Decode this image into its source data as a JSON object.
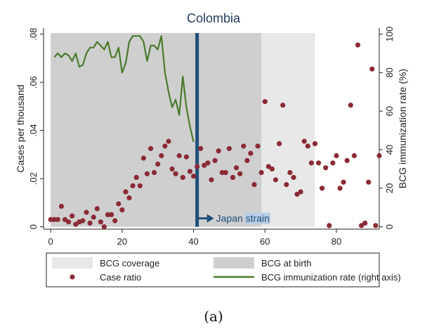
{
  "caption": "(a)",
  "chart_data": {
    "type": "scatter",
    "title": "Colombia",
    "xlabel": "",
    "ylabel": "Cases per thousand",
    "y2label": "BCG immunization rate (%)",
    "xlim": [
      -2,
      92
    ],
    "ylim": [
      -0.001,
      0.0825
    ],
    "y2lim": [
      -1.25,
      103.1
    ],
    "xticks": [
      "0",
      "20",
      "40",
      "60",
      "80"
    ],
    "yticks": [
      "0",
      ".02",
      ".04",
      ".06",
      ".08"
    ],
    "y2ticks": [
      "0",
      "20",
      "40",
      "60",
      "80",
      "100"
    ],
    "shaded_regions": [
      {
        "name": "BCG coverage",
        "x": [
          0,
          74
        ],
        "color": "#e8e8e8"
      },
      {
        "name": "BCG at birth",
        "x": [
          0,
          59
        ],
        "color": "#cfcfcf"
      }
    ],
    "annotation": {
      "x": 41,
      "label_prefix": "Japan",
      "label_highlight": "strain",
      "arrow_y": 0.0035
    },
    "legend": {
      "placement": "bottom",
      "entries": [
        {
          "label": "BCG coverage",
          "kind": "box",
          "color": "#e8e8e8"
        },
        {
          "label": "BCG at birth",
          "kind": "box",
          "color": "#cfcfcf"
        },
        {
          "label": "Case ratio",
          "kind": "marker",
          "color": "#8b2a35"
        },
        {
          "label": "BCG immunization rate (right axis)",
          "kind": "line",
          "color": "#4a7a2c"
        }
      ]
    },
    "series": [
      {
        "name": "Case ratio",
        "axis": "left",
        "color": "#8b2a35",
        "points": [
          [
            0,
            0.003
          ],
          [
            1,
            0.003
          ],
          [
            2,
            0.003
          ],
          [
            3,
            0.0085
          ],
          [
            4,
            0.003
          ],
          [
            5,
            0.002
          ],
          [
            6,
            0.0045
          ],
          [
            7,
            0.001
          ],
          [
            8,
            0.002
          ],
          [
            9,
            0.0025
          ],
          [
            10,
            0.006
          ],
          [
            11,
            0.0015
          ],
          [
            12,
            0.004
          ],
          [
            13,
            0.0075
          ],
          [
            14,
            0.002
          ],
          [
            15,
            0.0
          ],
          [
            16,
            0.005
          ],
          [
            17,
            0.005
          ],
          [
            18,
            0.0025
          ],
          [
            19,
            0.0095
          ],
          [
            20,
            0.007
          ],
          [
            21,
            0.0145
          ],
          [
            22,
            0.012
          ],
          [
            23,
            0.017
          ],
          [
            24,
            0.0205
          ],
          [
            25,
            0.017
          ],
          [
            26,
            0.0285
          ],
          [
            27,
            0.022
          ],
          [
            28,
            0.0325
          ],
          [
            29,
            0.0225
          ],
          [
            30,
            0.026
          ],
          [
            31,
            0.0295
          ],
          [
            32,
            0.0335
          ],
          [
            33,
            0.0355
          ],
          [
            34,
            0.024
          ],
          [
            35,
            0.022
          ],
          [
            36,
            0.0295
          ],
          [
            37,
            0.0205
          ],
          [
            38,
            0.029
          ],
          [
            39,
            0.023
          ],
          [
            40,
            0.021
          ],
          [
            41,
            0.025
          ],
          [
            42,
            0.0325
          ],
          [
            43,
            0.0255
          ],
          [
            44,
            0.0265
          ],
          [
            45,
            0.0195
          ],
          [
            46,
            0.0275
          ],
          [
            47,
            0.0315
          ],
          [
            48,
            0.0225
          ],
          [
            49,
            0.0225
          ],
          [
            50,
            0.0325
          ],
          [
            51,
            0.0205
          ],
          [
            52,
            0.0245
          ],
          [
            53,
            0.022
          ],
          [
            54,
            0.0335
          ],
          [
            55,
            0.0275
          ],
          [
            56,
            0.0305
          ],
          [
            57,
            0.0175
          ],
          [
            58,
            0.0335
          ],
          [
            59,
            0.0225
          ],
          [
            60,
            0.052
          ],
          [
            61,
            0.025
          ],
          [
            62,
            0.024
          ],
          [
            63,
            0.0195
          ],
          [
            64,
            0.0345
          ],
          [
            65,
            0.0505
          ],
          [
            66,
            0.0175
          ],
          [
            67,
            0.0225
          ],
          [
            68,
            0.0205
          ],
          [
            69,
            0.0135
          ],
          [
            70,
            0.0145
          ],
          [
            71,
            0.0355
          ],
          [
            72,
            0.0335
          ],
          [
            73,
            0.0265
          ],
          [
            74,
            0.0345
          ],
          [
            75,
            0.0265
          ],
          [
            76,
            0.016
          ],
          [
            77,
            0.0245
          ],
          [
            78,
            0.0005
          ],
          [
            79,
            0.0265
          ],
          [
            80,
            0.0295
          ],
          [
            81,
            0.016
          ],
          [
            82,
            0.0185
          ],
          [
            83,
            0.0275
          ],
          [
            84,
            0.0505
          ],
          [
            85,
            0.0295
          ],
          [
            86,
            0.0755
          ],
          [
            87,
            0.0005
          ],
          [
            88,
            0.0015
          ],
          [
            89,
            0.0185
          ],
          [
            90,
            0.0655
          ],
          [
            91,
            0.0005
          ],
          [
            92,
            0.0295
          ]
        ]
      },
      {
        "name": "BCG immunization rate (right axis)",
        "axis": "right",
        "color": "#4a7a2c",
        "points": [
          [
            1,
            88
          ],
          [
            2,
            90
          ],
          [
            3,
            88
          ],
          [
            4,
            90
          ],
          [
            5,
            89
          ],
          [
            6,
            86
          ],
          [
            7,
            90
          ],
          [
            8,
            83
          ],
          [
            9,
            84
          ],
          [
            10,
            90
          ],
          [
            11,
            93
          ],
          [
            12,
            93
          ],
          [
            13,
            96
          ],
          [
            14,
            94
          ],
          [
            15,
            92
          ],
          [
            16,
            96
          ],
          [
            17,
            88
          ],
          [
            18,
            88
          ],
          [
            19,
            93
          ],
          [
            20,
            80
          ],
          [
            21,
            85
          ],
          [
            22,
            96
          ],
          [
            23,
            99
          ],
          [
            24,
            99
          ],
          [
            25,
            99
          ],
          [
            26,
            96
          ],
          [
            27,
            86
          ],
          [
            28,
            94
          ],
          [
            29,
            94
          ],
          [
            30,
            92
          ],
          [
            31,
            99
          ],
          [
            32,
            80
          ],
          [
            33,
            70
          ],
          [
            34,
            62
          ],
          [
            35,
            66
          ],
          [
            36,
            58
          ],
          [
            37,
            78
          ],
          [
            38,
            62
          ],
          [
            39,
            52
          ],
          [
            40,
            44
          ]
        ]
      }
    ]
  }
}
